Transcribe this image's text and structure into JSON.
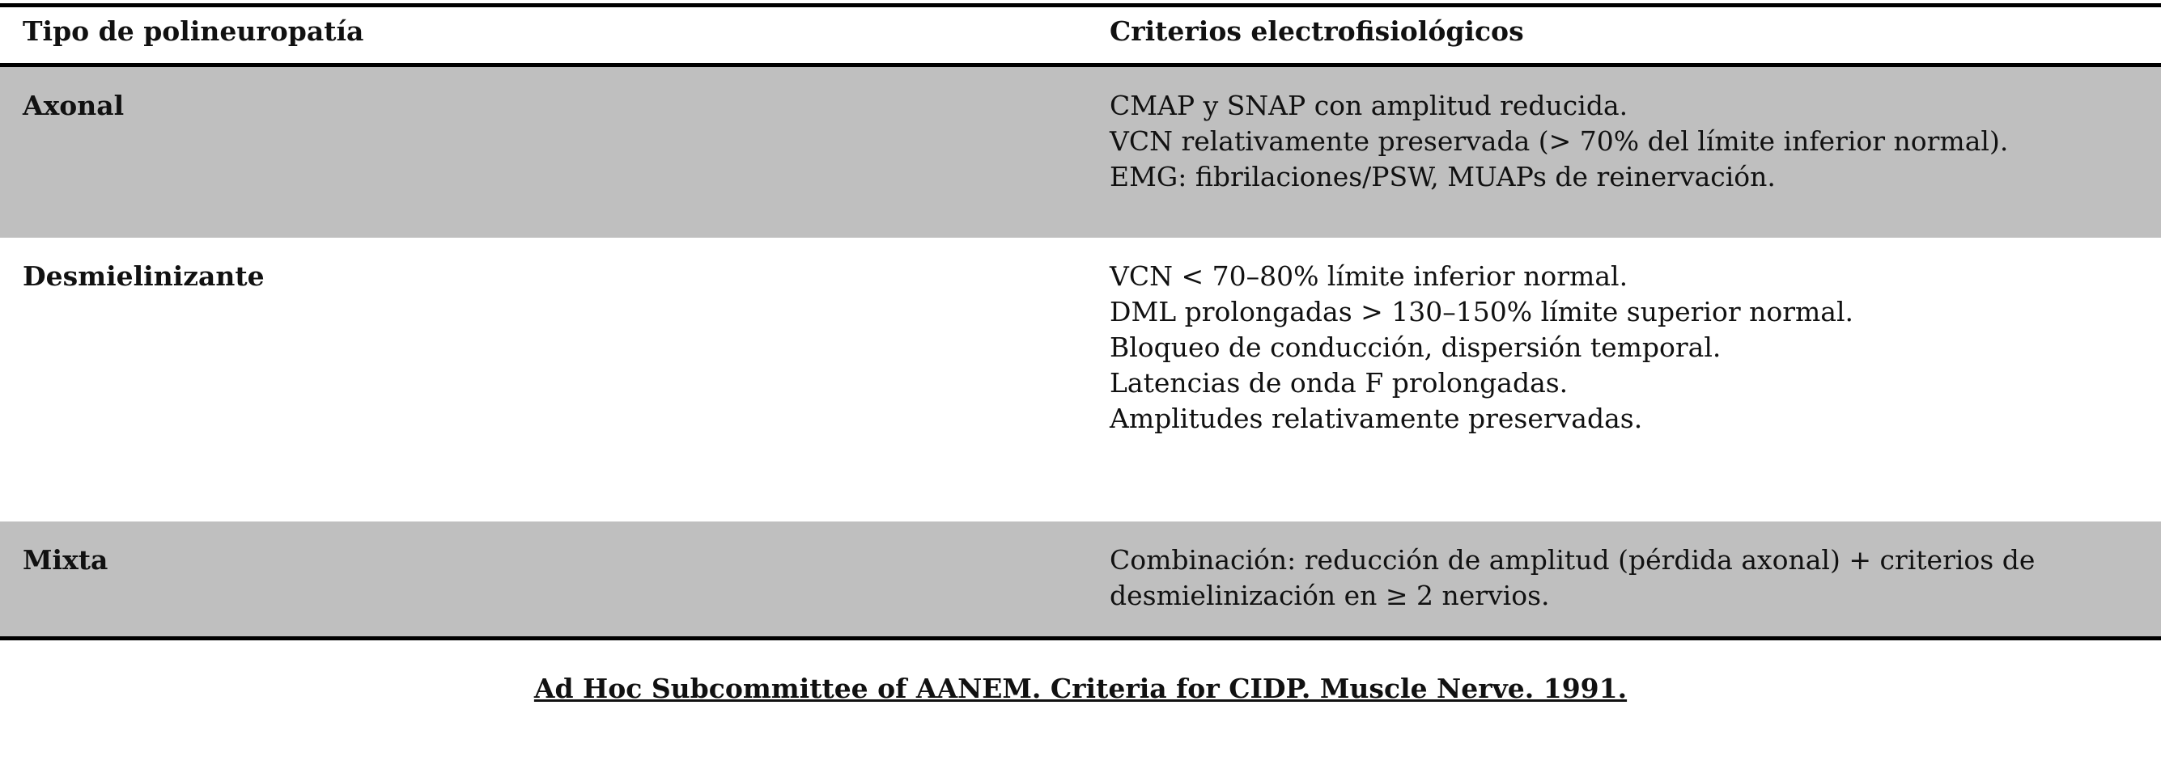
{
  "table": {
    "headers": {
      "type": "Tipo de polineuropatía",
      "criteria": "Criterios electrofisiológicos"
    },
    "rows": [
      {
        "type": "Axonal",
        "criteria": [
          "CMAP y SNAP con amplitud reducida.",
          "VCN relativamente preservada (> 70% del límite inferior normal).",
          "EMG: fibrilaciones/PSW, MUAPs de reinervación."
        ]
      },
      {
        "type": "Desmielinizante",
        "criteria": [
          "VCN < 70–80% límite inferior normal.",
          "DML prolongadas > 130–150% límite superior normal.",
          "Bloqueo de conducción, dispersión temporal.",
          "Latencias de onda F prolongadas.",
          "Amplitudes relativamente preservadas."
        ]
      },
      {
        "type": "Mixta",
        "criteria": [
          "Combinación: reducción de amplitud (pérdida axonal) + criterios de",
          "desmielinización en ≥ 2 nervios."
        ]
      }
    ]
  },
  "citation": "Ad Hoc Subcommittee of AANEM. Criteria for CIDP. Muscle Nerve. 1991.",
  "colors": {
    "shaded_row": "#bfbfbf",
    "rule": "#000000"
  }
}
